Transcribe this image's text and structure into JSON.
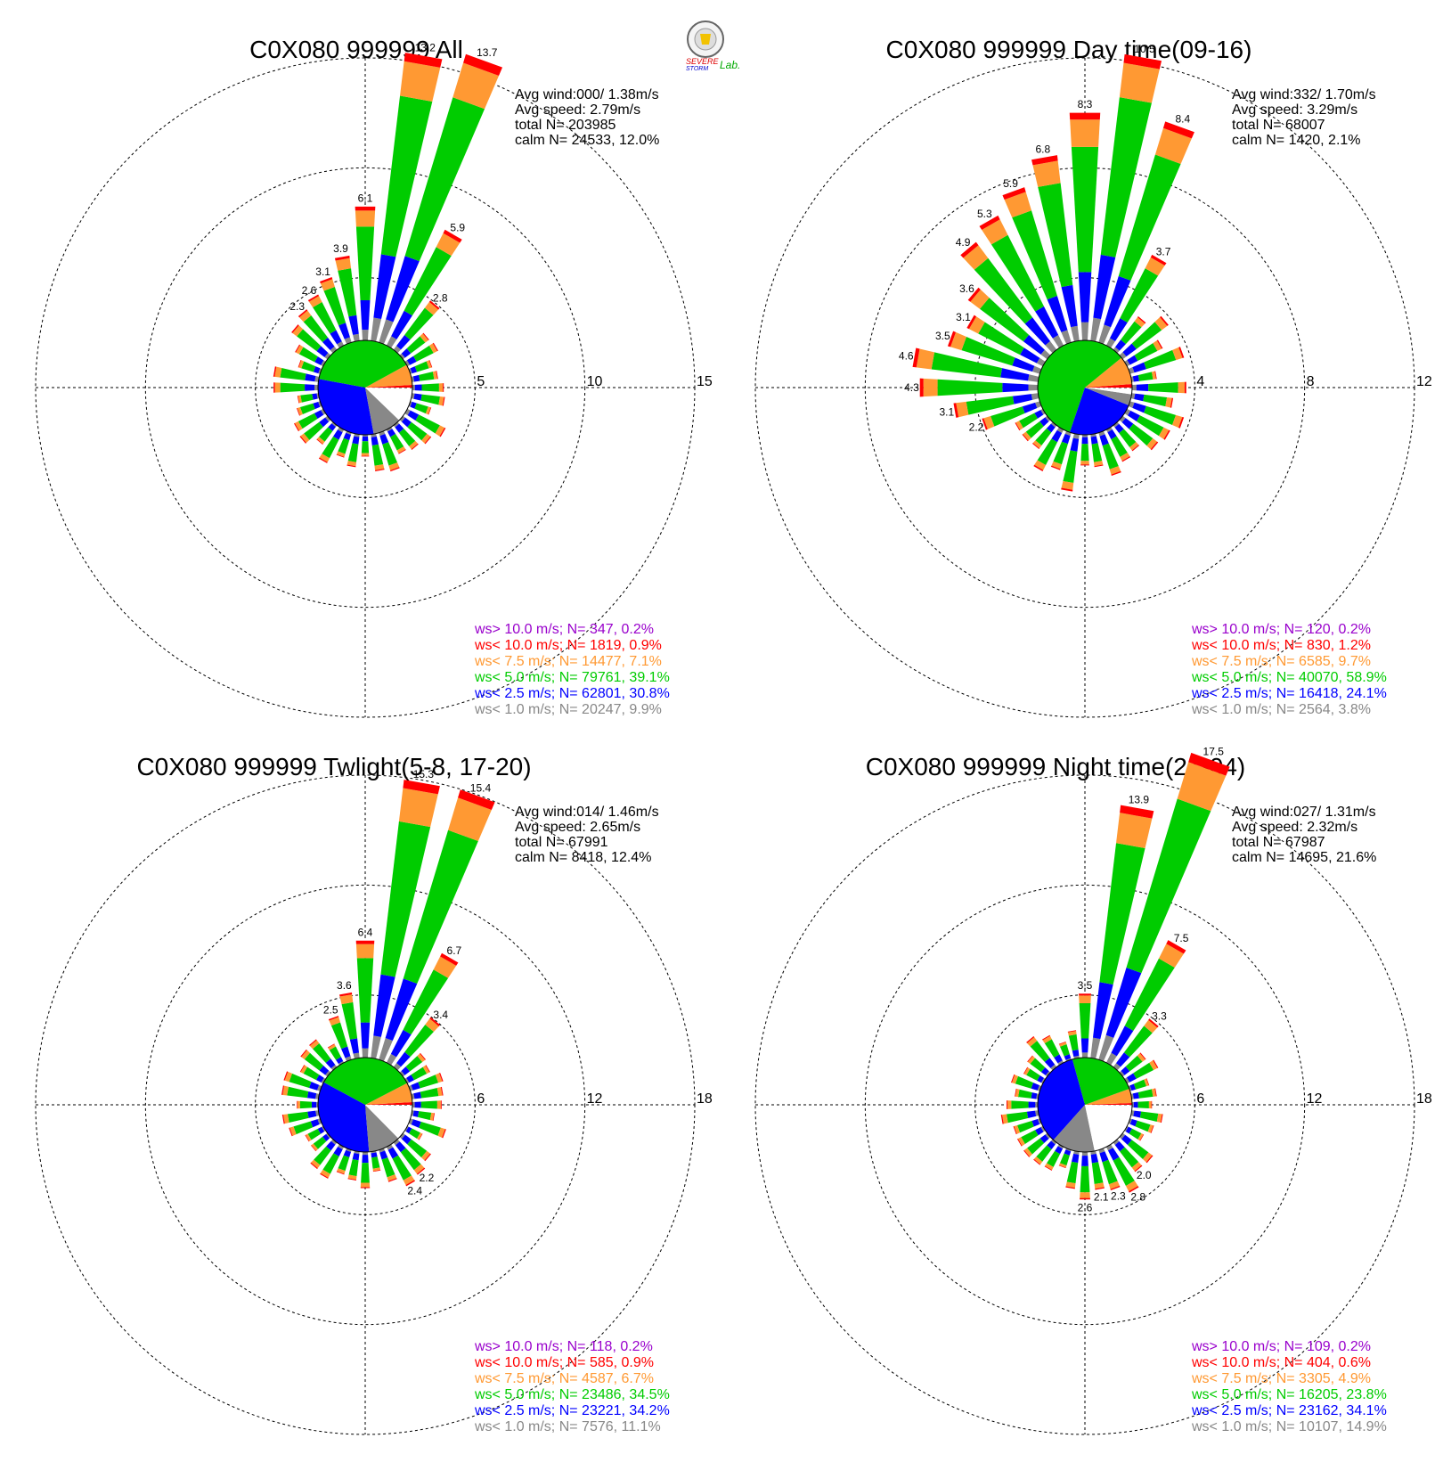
{
  "logo": {
    "text1": "SEVERE",
    "text2": "STORM",
    "text3": "Lab."
  },
  "colors": {
    "gt10": "#9900cc",
    "lt10": "#ff0000",
    "lt75": "#ff9933",
    "lt50": "#00cc00",
    "lt25": "#0000ff",
    "lt10calm": "#888888",
    "calm": "#ffffff"
  },
  "chart_data": [
    {
      "type": "wind_rose",
      "title": "C0X080 999999 All",
      "info": [
        "Avg wind:000/ 1.38m/s",
        "Avg speed: 2.79m/s",
        "total N=      203985",
        "calm N=  24533,  12.0%"
      ],
      "ring_labels": [
        "5",
        "10",
        "15"
      ],
      "ring_max": 15,
      "bar_labels": [
        {
          "dir": 0,
          "value": 6.1
        },
        {
          "dir": 10,
          "value": 13.2
        },
        {
          "dir": 20,
          "value": 13.7
        },
        {
          "dir": 30,
          "value": 5.9
        },
        {
          "dir": 40,
          "value": 2.8
        },
        {
          "dir": 350,
          "value": 3.9
        },
        {
          "dir": 340,
          "value": 3.1
        },
        {
          "dir": 330,
          "value": 2.6
        },
        {
          "dir": 320,
          "value": 2.3
        }
      ],
      "pie": [
        {
          "key": "lt10",
          "pct": 0.9
        },
        {
          "key": "lt75",
          "pct": 7.1
        },
        {
          "key": "lt50",
          "pct": 39.1
        },
        {
          "key": "lt25",
          "pct": 30.8
        },
        {
          "key": "lt10calm",
          "pct": 9.9
        },
        {
          "key": "calm",
          "pct": 12.0
        }
      ],
      "legend": [
        {
          "key": "gt10",
          "text": "ws> 10.0 m/s; N=   347,  0.2%"
        },
        {
          "key": "lt10",
          "text": "ws< 10.0 m/s; N=  1819,  0.9%"
        },
        {
          "key": "lt75",
          "text": "ws<  7.5 m/s; N= 14477,  7.1%"
        },
        {
          "key": "lt50",
          "text": "ws<  5.0 m/s; N= 79761, 39.1%"
        },
        {
          "key": "lt25",
          "text": "ws<  2.5 m/s; N= 62801, 30.8%"
        },
        {
          "key": "lt10calm",
          "text": "ws<  1.0 m/s; N= 20247,  9.9%"
        }
      ]
    },
    {
      "type": "wind_rose",
      "title": "C0X080 999999 Day time(09-16)",
      "info": [
        "Avg wind:332/ 1.70m/s",
        "Avg speed: 3.29m/s",
        "total N=      68007",
        "calm N=   1420,   2.1%"
      ],
      "ring_labels": [
        "4",
        "8",
        "12"
      ],
      "ring_max": 12,
      "bar_labels": [
        {
          "dir": 0,
          "value": 8.3
        },
        {
          "dir": 10,
          "value": 10.5
        },
        {
          "dir": 20,
          "value": 8.4
        },
        {
          "dir": 30,
          "value": 3.7
        },
        {
          "dir": 350,
          "value": 6.8
        },
        {
          "dir": 340,
          "value": 5.9
        },
        {
          "dir": 330,
          "value": 5.3
        },
        {
          "dir": 320,
          "value": 4.9
        },
        {
          "dir": 310,
          "value": 3.6
        },
        {
          "dir": 300,
          "value": 3.1
        },
        {
          "dir": 290,
          "value": 3.5
        },
        {
          "dir": 280,
          "value": 4.6
        },
        {
          "dir": 270,
          "value": 4.3
        },
        {
          "dir": 260,
          "value": 3.1
        },
        {
          "dir": 250,
          "value": 2.2
        }
      ],
      "pie": [
        {
          "key": "lt10",
          "pct": 1.2
        },
        {
          "key": "lt75",
          "pct": 9.7
        },
        {
          "key": "lt50",
          "pct": 58.9
        },
        {
          "key": "lt25",
          "pct": 24.1
        },
        {
          "key": "lt10calm",
          "pct": 3.8
        },
        {
          "key": "calm",
          "pct": 2.1
        }
      ],
      "legend": [
        {
          "key": "gt10",
          "text": "ws> 10.0 m/s; N=   120,  0.2%"
        },
        {
          "key": "lt10",
          "text": "ws< 10.0 m/s; N=   830,  1.2%"
        },
        {
          "key": "lt75",
          "text": "ws<  7.5 m/s; N=  6585,  9.7%"
        },
        {
          "key": "lt50",
          "text": "ws<  5.0 m/s; N= 40070, 58.9%"
        },
        {
          "key": "lt25",
          "text": "ws<  2.5 m/s; N= 16418, 24.1%"
        },
        {
          "key": "lt10calm",
          "text": "ws<  1.0 m/s; N=  2564,  3.8%"
        }
      ]
    },
    {
      "type": "wind_rose",
      "title": "C0X080 999999 Twlight(5-8, 17-20)",
      "info": [
        "Avg wind:014/ 1.46m/s",
        "Avg speed: 2.65m/s",
        "total N=      67991",
        "calm N=   8418,  12.4%"
      ],
      "ring_labels": [
        "6",
        "12",
        "18"
      ],
      "ring_max": 18,
      "bar_labels": [
        {
          "dir": 0,
          "value": 6.4
        },
        {
          "dir": 10,
          "value": 15.3
        },
        {
          "dir": 20,
          "value": 15.4
        },
        {
          "dir": 30,
          "value": 6.7
        },
        {
          "dir": 40,
          "value": 3.4
        },
        {
          "dir": 350,
          "value": 3.6
        },
        {
          "dir": 340,
          "value": 2.5
        },
        {
          "dir": 150,
          "value": 2.4
        },
        {
          "dir": 140,
          "value": 2.2
        }
      ],
      "pie": [
        {
          "key": "lt10",
          "pct": 0.9
        },
        {
          "key": "lt75",
          "pct": 6.7
        },
        {
          "key": "lt50",
          "pct": 34.5
        },
        {
          "key": "lt25",
          "pct": 34.2
        },
        {
          "key": "lt10calm",
          "pct": 11.1
        },
        {
          "key": "calm",
          "pct": 12.4
        }
      ],
      "legend": [
        {
          "key": "gt10",
          "text": "ws> 10.0 m/s; N=   118,  0.2%"
        },
        {
          "key": "lt10",
          "text": "ws< 10.0 m/s; N=   585,  0.9%"
        },
        {
          "key": "lt75",
          "text": "ws<  7.5 m/s; N=  4587,  6.7%"
        },
        {
          "key": "lt50",
          "text": "ws<  5.0 m/s; N= 23486, 34.5%"
        },
        {
          "key": "lt25",
          "text": "ws<  2.5 m/s; N= 23221, 34.2%"
        },
        {
          "key": "lt10calm",
          "text": "ws<  1.0 m/s; N=  7576, 11.1%"
        }
      ]
    },
    {
      "type": "wind_rose",
      "title": "C0X080 999999 Night time(21-04)",
      "info": [
        "Avg wind:027/ 1.31m/s",
        "Avg speed: 2.32m/s",
        "total N=      67987",
        "calm N=  14695,  21.6%"
      ],
      "ring_labels": [
        "6",
        "12",
        "18"
      ],
      "ring_max": 18,
      "bar_labels": [
        {
          "dir": 0,
          "value": 3.5
        },
        {
          "dir": 10,
          "value": 13.9
        },
        {
          "dir": 20,
          "value": 17.5
        },
        {
          "dir": 30,
          "value": 7.5
        },
        {
          "dir": 40,
          "value": 3.3
        },
        {
          "dir": 180,
          "value": 2.6
        },
        {
          "dir": 170,
          "value": 2.1
        },
        {
          "dir": 160,
          "value": 2.3
        },
        {
          "dir": 150,
          "value": 2.8
        },
        {
          "dir": 140,
          "value": 2.0
        }
      ],
      "pie": [
        {
          "key": "lt10",
          "pct": 0.6
        },
        {
          "key": "lt75",
          "pct": 4.9
        },
        {
          "key": "lt50",
          "pct": 23.8
        },
        {
          "key": "lt25",
          "pct": 34.1
        },
        {
          "key": "lt10calm",
          "pct": 14.9
        },
        {
          "key": "calm",
          "pct": 21.6
        }
      ],
      "legend": [
        {
          "key": "gt10",
          "text": "ws> 10.0 m/s; N=   109,  0.2%"
        },
        {
          "key": "lt10",
          "text": "ws< 10.0 m/s; N=   404,  0.6%"
        },
        {
          "key": "lt75",
          "text": "ws<  7.5 m/s; N=  3305,  4.9%"
        },
        {
          "key": "lt50",
          "text": "ws<  5.0 m/s; N= 16205, 23.8%"
        },
        {
          "key": "lt25",
          "text": "ws<  2.5 m/s; N= 23162, 34.1%"
        },
        {
          "key": "lt10calm",
          "text": "ws<  1.0 m/s; N= 10107, 14.9%"
        }
      ]
    }
  ]
}
